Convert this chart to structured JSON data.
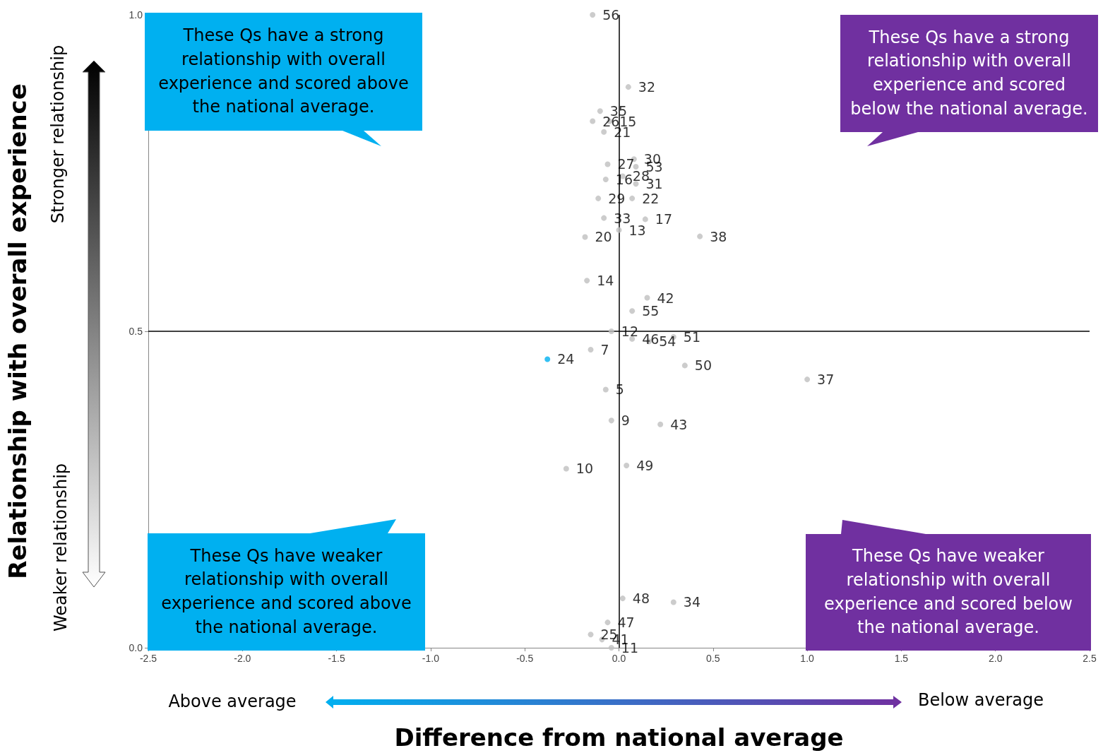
{
  "chart_data": {
    "type": "scatter",
    "xlabel": "Difference from national average",
    "ylabel": "Relationship with overall experience",
    "series": [
      {
        "name": "56",
        "color": "#bfbfbf",
        "x": [
          -0.14
        ],
        "values": [
          1.0
        ]
      },
      {
        "name": "32",
        "color": "#bfbfbf",
        "x": [
          0.05
        ],
        "values": [
          0.886
        ]
      },
      {
        "name": "35",
        "color": "#bfbfbf",
        "x": [
          -0.1
        ],
        "values": [
          0.848
        ]
      },
      {
        "name": "26",
        "color": "#bfbfbf",
        "x": [
          -0.14
        ],
        "values": [
          0.832
        ]
      },
      {
        "name": "15",
        "color": "#bfbfbf",
        "x": [
          -0.05
        ],
        "values": [
          0.832
        ]
      },
      {
        "name": "21",
        "color": "#bfbfbf",
        "x": [
          -0.08
        ],
        "values": [
          0.815
        ]
      },
      {
        "name": "30",
        "color": "#bfbfbf",
        "x": [
          0.08
        ],
        "values": [
          0.772
        ]
      },
      {
        "name": "27",
        "color": "#bfbfbf",
        "x": [
          -0.06
        ],
        "values": [
          0.764
        ]
      },
      {
        "name": "53",
        "color": "#bfbfbf",
        "x": [
          0.09
        ],
        "values": [
          0.76
        ]
      },
      {
        "name": "28",
        "color": "#bfbfbf",
        "x": [
          0.02
        ],
        "values": [
          0.745
        ]
      },
      {
        "name": "16",
        "color": "#bfbfbf",
        "x": [
          -0.07
        ],
        "values": [
          0.74
        ]
      },
      {
        "name": "31",
        "color": "#bfbfbf",
        "x": [
          0.09
        ],
        "values": [
          0.733
        ]
      },
      {
        "name": "29",
        "color": "#bfbfbf",
        "x": [
          -0.11
        ],
        "values": [
          0.71
        ]
      },
      {
        "name": "22",
        "color": "#bfbfbf",
        "x": [
          0.07
        ],
        "values": [
          0.71
        ]
      },
      {
        "name": "17",
        "color": "#bfbfbf",
        "x": [
          0.14
        ],
        "values": [
          0.677
        ]
      },
      {
        "name": "33",
        "color": "#bfbfbf",
        "x": [
          -0.08
        ],
        "values": [
          0.679
        ]
      },
      {
        "name": "13",
        "color": "#bfbfbf",
        "x": [
          0.0
        ],
        "values": [
          0.66
        ]
      },
      {
        "name": "20",
        "color": "#bfbfbf",
        "x": [
          -0.18
        ],
        "values": [
          0.649
        ]
      },
      {
        "name": "38",
        "color": "#bfbfbf",
        "x": [
          0.43
        ],
        "values": [
          0.65
        ]
      },
      {
        "name": "14",
        "color": "#bfbfbf",
        "x": [
          -0.17
        ],
        "values": [
          0.58
        ]
      },
      {
        "name": "42",
        "color": "#bfbfbf",
        "x": [
          0.15
        ],
        "values": [
          0.553
        ]
      },
      {
        "name": "55",
        "color": "#bfbfbf",
        "x": [
          0.07
        ],
        "values": [
          0.532
        ]
      },
      {
        "name": "12",
        "color": "#bfbfbf",
        "x": [
          -0.04
        ],
        "values": [
          0.5
        ]
      },
      {
        "name": "46",
        "color": "#bfbfbf",
        "x": [
          0.07
        ],
        "values": [
          0.488
        ]
      },
      {
        "name": "54",
        "color": "#bfbfbf",
        "x": [
          0.16
        ],
        "values": [
          0.484
        ]
      },
      {
        "name": "51",
        "color": "#bfbfbf",
        "x": [
          0.29
        ],
        "values": [
          0.491
        ]
      },
      {
        "name": "7",
        "color": "#bfbfbf",
        "x": [
          -0.15
        ],
        "values": [
          0.471
        ]
      },
      {
        "name": "24",
        "color": "#00b0f0",
        "x": [
          -0.38
        ],
        "values": [
          0.456
        ]
      },
      {
        "name": "50",
        "color": "#bfbfbf",
        "x": [
          0.35
        ],
        "values": [
          0.446
        ]
      },
      {
        "name": "37",
        "color": "#bfbfbf",
        "x": [
          1.0
        ],
        "values": [
          0.424
        ]
      },
      {
        "name": "5",
        "color": "#bfbfbf",
        "x": [
          -0.07
        ],
        "values": [
          0.408
        ]
      },
      {
        "name": "9",
        "color": "#bfbfbf",
        "x": [
          -0.04
        ],
        "values": [
          0.359
        ]
      },
      {
        "name": "43",
        "color": "#bfbfbf",
        "x": [
          0.22
        ],
        "values": [
          0.353
        ]
      },
      {
        "name": "10",
        "color": "#bfbfbf",
        "x": [
          -0.28
        ],
        "values": [
          0.283
        ]
      },
      {
        "name": "49",
        "color": "#bfbfbf",
        "x": [
          0.04
        ],
        "values": [
          0.288
        ]
      },
      {
        "name": "48",
        "color": "#bfbfbf",
        "x": [
          0.02
        ],
        "values": [
          0.078
        ]
      },
      {
        "name": "34",
        "color": "#bfbfbf",
        "x": [
          0.29
        ],
        "values": [
          0.072
        ]
      },
      {
        "name": "47",
        "color": "#bfbfbf",
        "x": [
          -0.06
        ],
        "values": [
          0.04
        ]
      },
      {
        "name": "25",
        "color": "#bfbfbf",
        "x": [
          -0.15
        ],
        "values": [
          0.021
        ]
      },
      {
        "name": "41",
        "color": "#bfbfbf",
        "x": [
          -0.09
        ],
        "values": [
          0.013
        ]
      },
      {
        "name": "11",
        "color": "#bfbfbf",
        "x": [
          -0.04
        ],
        "values": [
          0.0
        ]
      }
    ],
    "xlim": [
      -2.5,
      2.5
    ],
    "xticks": [
      {
        "value": -2.5,
        "label": "-2.5"
      },
      {
        "value": -2,
        "label": "-2.0"
      },
      {
        "value": -1.5,
        "label": "-1.5"
      },
      {
        "value": -1,
        "label": "-1.0"
      },
      {
        "value": -0.5,
        "label": "-0.5"
      },
      {
        "value": 0,
        "label": "0.0"
      },
      {
        "value": 0.5,
        "label": "0.5"
      },
      {
        "value": 1,
        "label": "1.0"
      },
      {
        "value": 1.5,
        "label": "1.5"
      },
      {
        "value": 2,
        "label": "2.0"
      },
      {
        "value": 2.5,
        "label": "2.5"
      }
    ],
    "ylim": [
      0,
      1
    ],
    "yticks": [
      {
        "value": 0,
        "label": "0.0"
      },
      {
        "value": 0.5,
        "label": "0.5"
      },
      {
        "value": 1,
        "label": "1.0"
      }
    ],
    "ref_lines": [
      {
        "axis": "x",
        "value": 0,
        "color": "#000000"
      },
      {
        "axis": "y",
        "value": 0.5,
        "color": "#000000"
      }
    ],
    "grid": false,
    "legend": false,
    "marker": "circle",
    "annotations": [
      "These Qs have a strong relationship with overall experience and scored above the national average.",
      "These Qs have a strong relationship with overall experience and scored below the national average.",
      "These Qs have weaker relationship with overall experience and scored above the national average.",
      "These Qs have weaker relationship with overall experience and scored below the national average.",
      "Stronger relationship",
      "Weaker relationship",
      "Above average",
      "Below average"
    ]
  }
}
